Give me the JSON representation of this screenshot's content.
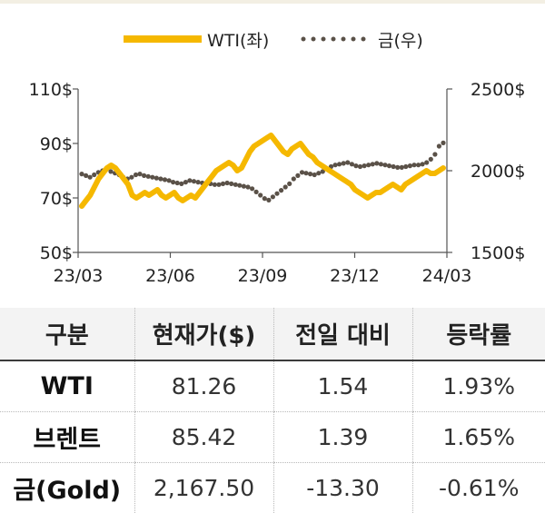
{
  "chart_data": {
    "type": "line",
    "x_ticks": [
      "23/03",
      "23/06",
      "23/09",
      "23/12",
      "24/03"
    ],
    "y_left_ticks": [
      "110$",
      "90$",
      "70$",
      "50$"
    ],
    "y_left_range": [
      50,
      110
    ],
    "y_right_ticks": [
      "2500$",
      "2000$",
      "1500$"
    ],
    "y_right_range": [
      1500,
      2500
    ],
    "legend_position": "top-center",
    "series": [
      {
        "name": "WTI(좌)",
        "axis": "left",
        "style": "solid",
        "color": "#f5b800",
        "values": [
          67,
          69,
          71,
          74,
          77,
          79,
          81,
          82,
          81,
          79,
          77,
          75,
          71,
          70,
          71,
          72,
          71,
          72,
          73,
          71,
          70,
          71,
          72,
          70,
          69,
          70,
          71,
          70,
          72,
          74,
          76,
          78,
          80,
          81,
          82,
          83,
          82,
          80,
          81,
          84,
          87,
          89,
          90,
          91,
          92,
          93,
          91,
          89,
          87,
          86,
          88,
          89,
          90,
          88,
          86,
          85,
          83,
          82,
          81,
          80,
          79,
          78,
          77,
          76,
          75,
          73,
          72,
          71,
          70,
          71,
          72,
          72,
          73,
          74,
          75,
          74,
          73,
          75,
          76,
          77,
          78,
          79,
          80,
          79,
          79,
          80,
          81
        ]
      },
      {
        "name": "금(우)",
        "axis": "right",
        "style": "dotted",
        "color": "#5a5148",
        "values": [
          1980,
          1970,
          1960,
          1975,
          1990,
          2000,
          2010,
          1995,
          1985,
          1975,
          1960,
          1950,
          1960,
          1975,
          1980,
          1970,
          1965,
          1960,
          1955,
          1950,
          1945,
          1940,
          1930,
          1925,
          1920,
          1930,
          1940,
          1935,
          1930,
          1925,
          1920,
          1920,
          1915,
          1915,
          1920,
          1925,
          1920,
          1915,
          1910,
          1905,
          1900,
          1890,
          1870,
          1850,
          1830,
          1820,
          1840,
          1860,
          1880,
          1900,
          1920,
          1950,
          1970,
          1990,
          1985,
          1980,
          1975,
          1985,
          1995,
          2010,
          2025,
          2035,
          2040,
          2045,
          2050,
          2040,
          2030,
          2025,
          2030,
          2035,
          2040,
          2045,
          2040,
          2035,
          2030,
          2025,
          2020,
          2020,
          2025,
          2030,
          2035,
          2035,
          2040,
          2050,
          2070,
          2100,
          2150,
          2170
        ]
      }
    ]
  },
  "table": {
    "headers": [
      "구분",
      "현재가($)",
      "전일 대비",
      "등락률"
    ],
    "rows": [
      {
        "name": "WTI",
        "price": "81.26",
        "change": "1.54",
        "rate": "1.93%"
      },
      {
        "name": "브렌트",
        "price": "85.42",
        "change": "1.39",
        "rate": "1.65%"
      },
      {
        "name": "금(Gold)",
        "price": "2,167.50",
        "change": "-13.30",
        "rate": "-0.61%"
      }
    ]
  }
}
